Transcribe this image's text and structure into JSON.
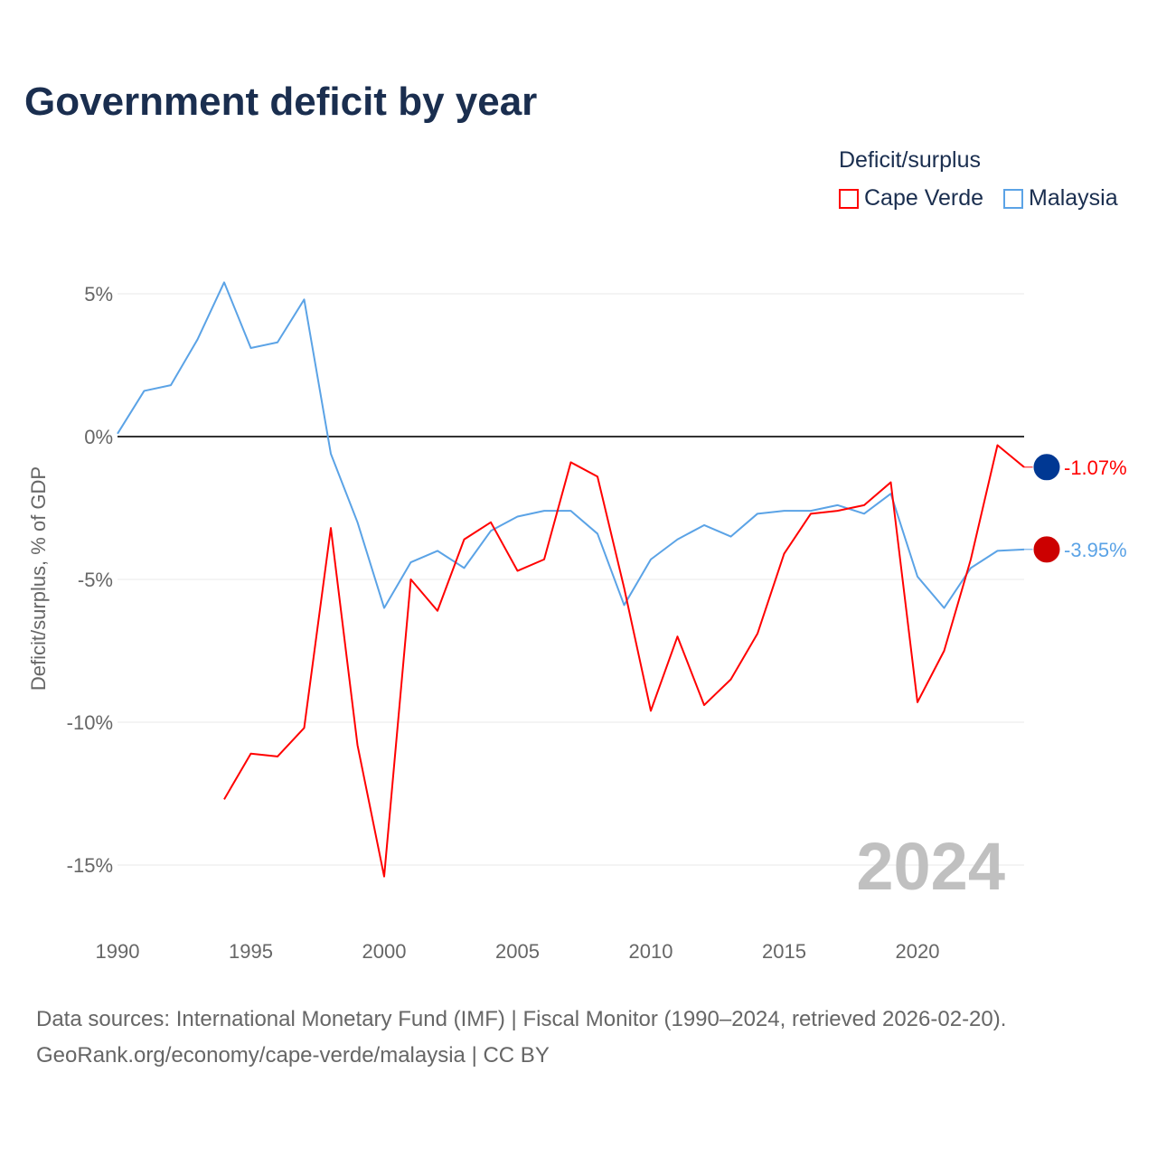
{
  "chart_data": {
    "type": "line",
    "title": "Government deficit by year",
    "ylabel": "Deficit/surplus, % of GDP",
    "xlabel": "",
    "xlim": [
      1990,
      2024
    ],
    "ylim": [
      -16.5,
      6
    ],
    "yticks": [
      5,
      0,
      -5,
      -10,
      -15
    ],
    "ytick_labels": [
      "5%",
      "0%",
      "-5%",
      "-10%",
      "-15%"
    ],
    "xticks": [
      1990,
      1995,
      2000,
      2005,
      2010,
      2015,
      2020
    ],
    "xtick_labels": [
      "1990",
      "1995",
      "2000",
      "2005",
      "2010",
      "2015",
      "2020"
    ],
    "legend_title": "Deficit/surplus",
    "legend_position": "top-right",
    "year_watermark": "2024",
    "series": [
      {
        "name": "Cape Verde",
        "color": "#ff0000",
        "end_label": "-1.07%",
        "x": [
          1994,
          1995,
          1996,
          1997,
          1998,
          1999,
          2000,
          2001,
          2002,
          2003,
          2004,
          2005,
          2006,
          2007,
          2008,
          2009,
          2010,
          2011,
          2012,
          2013,
          2014,
          2015,
          2016,
          2017,
          2018,
          2019,
          2020,
          2021,
          2022,
          2023,
          2024
        ],
        "values": [
          -12.7,
          -11.1,
          -11.2,
          -10.2,
          -3.2,
          -10.8,
          -15.4,
          -5.0,
          -6.1,
          -3.6,
          -3.0,
          -4.7,
          -4.3,
          -0.9,
          -1.4,
          -5.3,
          -9.6,
          -7.0,
          -9.4,
          -8.5,
          -6.9,
          -4.1,
          -2.7,
          -2.6,
          -2.4,
          -1.6,
          -9.3,
          -7.5,
          -4.3,
          -0.3,
          -1.07
        ]
      },
      {
        "name": "Malaysia",
        "color": "#5ba3e6",
        "end_label": "-3.95%",
        "x": [
          1990,
          1991,
          1992,
          1993,
          1994,
          1995,
          1996,
          1997,
          1998,
          1999,
          2000,
          2001,
          2002,
          2003,
          2004,
          2005,
          2006,
          2007,
          2008,
          2009,
          2010,
          2011,
          2012,
          2013,
          2014,
          2015,
          2016,
          2017,
          2018,
          2019,
          2020,
          2021,
          2022,
          2023,
          2024
        ],
        "values": [
          0.1,
          1.6,
          1.8,
          3.4,
          5.4,
          3.1,
          3.3,
          4.8,
          -0.6,
          -3.0,
          -6.0,
          -4.4,
          -4.0,
          -4.6,
          -3.3,
          -2.8,
          -2.6,
          -2.6,
          -3.4,
          -5.9,
          -4.3,
          -3.6,
          -3.1,
          -3.5,
          -2.7,
          -2.6,
          -2.6,
          -2.4,
          -2.7,
          -2.0,
          -4.9,
          -6.0,
          -4.6,
          -4.0,
          -3.95
        ]
      }
    ]
  },
  "source": {
    "line1": "Data sources: International Monetary Fund (IMF) | Fiscal Monitor (1990–2024, retrieved 2026-02-20).",
    "line2": "GeoRank.org/economy/cape-verde/malaysia | CC BY"
  }
}
